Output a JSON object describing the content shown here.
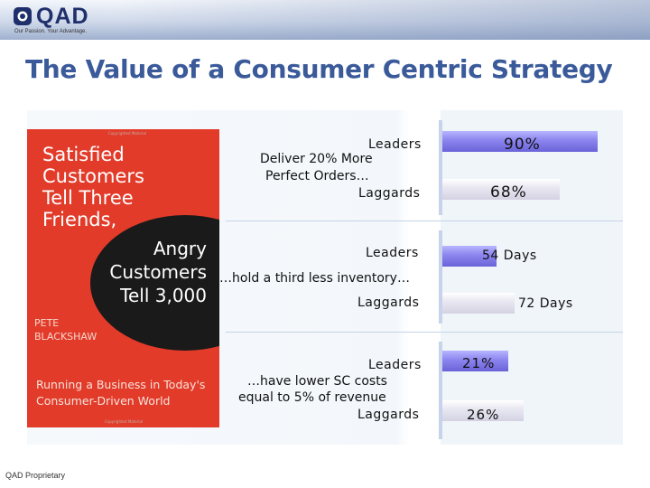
{
  "header": {
    "logo_text": "QAD",
    "tagline": "Our Passion. Your Advantage."
  },
  "slide": {
    "title": "The Value of a Consumer Centric Strategy"
  },
  "book": {
    "copyright_top": "Copyrighted Material",
    "lines_top": [
      "Satisfied",
      "Customers",
      "Tell Three",
      "Friends,"
    ],
    "lines_bubble": [
      "Angry",
      "Customers",
      "Tell 3,000"
    ],
    "author_first": "PETE",
    "author_last": "BLACKSHAW",
    "subtitle_1": "Running a Business in Today's",
    "subtitle_2": "Consumer-Driven World",
    "copyright_bottom": "Copyrighted Material"
  },
  "chart_data": {
    "type": "bar",
    "orientation": "horizontal",
    "groups": [
      {
        "description_lines": [
          "Deliver 20% More",
          "Perfect Orders…"
        ],
        "leaders_label": "Leaders",
        "laggards_label": "Laggards",
        "leaders_value": 90,
        "laggards_value": 68,
        "leaders_text": "90%",
        "laggards_text": "68%",
        "unit": "%"
      },
      {
        "description_lines": [
          "…hold a third less inventory…"
        ],
        "leaders_label": "Leaders",
        "laggards_label": "Laggards",
        "leaders_value": 54,
        "laggards_value": 72,
        "leaders_text": "54 Days",
        "laggards_text": "72 Days",
        "unit": "Days"
      },
      {
        "description_lines": [
          "…have lower SC costs",
          "equal to 5% of revenue"
        ],
        "leaders_label": "Leaders",
        "laggards_label": "Laggards",
        "leaders_value": 21,
        "laggards_value": 26,
        "leaders_text": "21%",
        "laggards_text": "26%",
        "unit": "%"
      }
    ],
    "colors": {
      "leaders": "#7d76e6",
      "laggards": "#e4e3ee"
    }
  },
  "footer": {
    "text": "QAD Proprietary"
  }
}
